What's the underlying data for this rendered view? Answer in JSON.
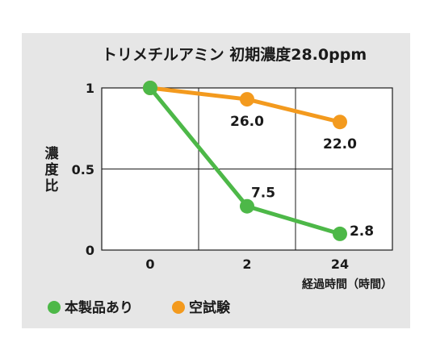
{
  "chart_data": {
    "type": "line",
    "title": "トリメチルアミン 初期濃度28.0ppm",
    "ylabel": "濃度比",
    "xlabel": "経過時間（時間）",
    "x": [
      "0",
      "2",
      "24"
    ],
    "yticks": [
      "1",
      "0.5",
      "0"
    ],
    "ylim": [
      0,
      1
    ],
    "grid": true,
    "legend_position": "bottom-left",
    "series": [
      {
        "name": "本製品あり",
        "color": "#4db848",
        "values": [
          1,
          0.27,
          0.1
        ],
        "labels": [
          "",
          "7.5",
          "2.8"
        ]
      },
      {
        "name": "空試験",
        "color": "#f39a1e",
        "values": [
          1,
          0.93,
          0.79
        ],
        "labels": [
          "",
          "26.0",
          "22.0"
        ]
      }
    ]
  }
}
